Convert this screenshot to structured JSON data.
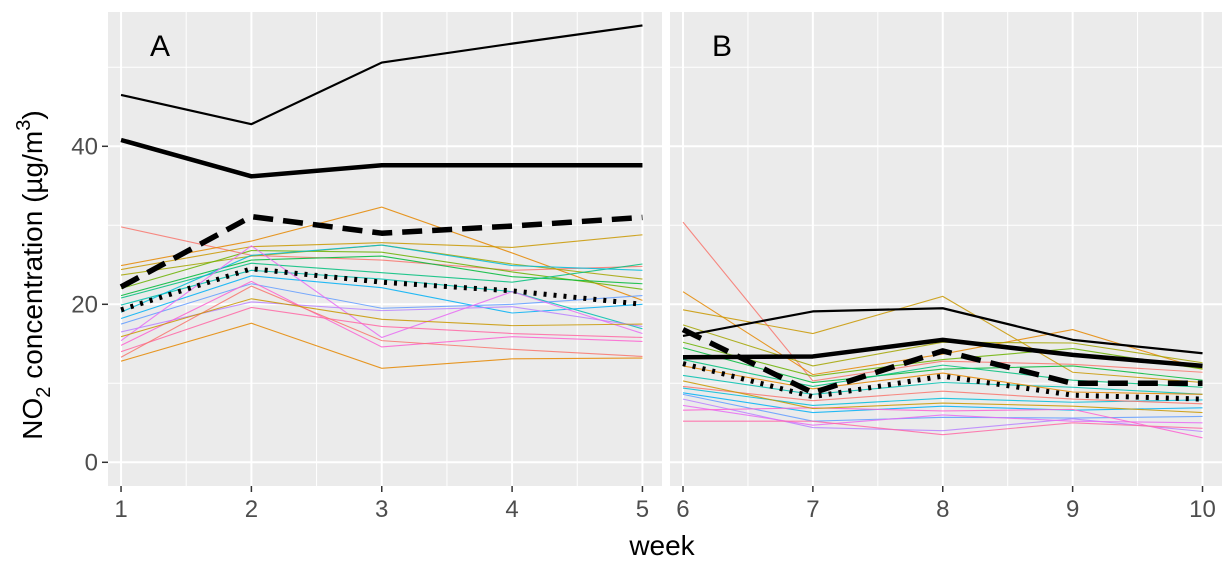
{
  "chart_data": {
    "type": "line",
    "xlabel": "week",
    "ylabel_parts": {
      "pre": "NO",
      "sub": "2",
      "mid": " concentration (µg/m",
      "sup": "3",
      "post": ")"
    },
    "ylim": [
      -3,
      57
    ],
    "y_ticks": [
      0,
      20,
      40
    ],
    "colors": {
      "panel_bg": "#ebebeb",
      "grid": "#ffffff",
      "summary": "#000000",
      "series_palette": [
        "#F8766D",
        "#E58700",
        "#C99800",
        "#A3A500",
        "#6BB100",
        "#00BA38",
        "#00BF7D",
        "#00C0AF",
        "#00BCD8",
        "#00B0F6",
        "#619CFF",
        "#B983FF",
        "#E76BF3",
        "#FD61D1",
        "#FF67A4"
      ]
    },
    "panels": [
      {
        "label": "A",
        "x_range": [
          0.9,
          5.15
        ],
        "x_ticks": [
          1,
          2,
          3,
          4,
          5
        ],
        "x": [
          1,
          2,
          3,
          4,
          5
        ],
        "summary": [
          {
            "style": "solid_thin",
            "values": [
              46.5,
              42.8,
              50.6,
              53,
              55.3
            ]
          },
          {
            "style": "solid_thick",
            "values": [
              40.8,
              36.2,
              37.6,
              37.6,
              37.6
            ]
          },
          {
            "style": "dashed",
            "values": [
              22.2,
              31.1,
              29.0,
              29.9,
              31.0
            ]
          },
          {
            "style": "dotted",
            "values": [
              19.3,
              24.5,
              22.8,
              21.7,
              20.0
            ]
          }
        ],
        "series": [
          {
            "values": [
              29.8,
              26.2,
              25.6,
              24.3,
              24.8
            ]
          },
          {
            "values": [
              24.9,
              28.0,
              32.3,
              26.5,
              20.5
            ]
          },
          {
            "values": [
              24.4,
              27.3,
              27.8,
              27.2,
              28.8
            ]
          },
          {
            "values": [
              23.7,
              26.1,
              27.5,
              25.1,
              23.2
            ]
          },
          {
            "values": [
              22.0,
              26.8,
              26.6,
              24.1,
              21.9
            ]
          },
          {
            "values": [
              21.1,
              25.6,
              26.1,
              23.5,
              22.6
            ]
          },
          {
            "values": [
              20.8,
              25.2,
              24.0,
              22.8,
              25.1
            ]
          },
          {
            "values": [
              19.9,
              24.3,
              23.2,
              21.6,
              16.9
            ]
          },
          {
            "values": [
              19.0,
              26.2,
              27.5,
              24.9,
              24.3
            ]
          },
          {
            "values": [
              18.2,
              23.6,
              22.1,
              18.9,
              20.0
            ]
          },
          {
            "values": [
              17.5,
              22.6,
              19.5,
              20.0,
              21.1
            ]
          },
          {
            "values": [
              16.5,
              20.3,
              19.2,
              19.7,
              17.2
            ]
          },
          {
            "values": [
              15.4,
              27.4,
              15.8,
              21.6,
              16.3
            ]
          },
          {
            "values": [
              14.8,
              22.9,
              14.6,
              15.9,
              15.3
            ]
          },
          {
            "values": [
              14.0,
              19.6,
              17.2,
              16.3,
              15.8
            ]
          },
          {
            "values": [
              13.3,
              22.3,
              15.4,
              14.3,
              13.4
            ]
          },
          {
            "values": [
              12.8,
              17.6,
              11.9,
              13.1,
              13.2
            ]
          },
          {
            "values": [
              15.9,
              20.7,
              18.1,
              17.3,
              17.5
            ]
          }
        ]
      },
      {
        "label": "B",
        "x_range": [
          5.9,
          10.15
        ],
        "x_ticks": [
          6,
          7,
          8,
          9,
          10
        ],
        "x": [
          6,
          7,
          8,
          9,
          10
        ],
        "summary": [
          {
            "style": "solid_thin",
            "values": [
              16.0,
              19.1,
              19.5,
              15.5,
              13.8
            ]
          },
          {
            "style": "solid_thick",
            "values": [
              13.3,
              13.4,
              15.5,
              13.6,
              12.2
            ]
          },
          {
            "style": "dashed",
            "values": [
              16.8,
              8.8,
              14.1,
              10.0,
              10.0
            ]
          },
          {
            "style": "dotted",
            "values": [
              12.5,
              8.3,
              10.9,
              8.5,
              8.0
            ]
          }
        ],
        "series": [
          {
            "values": [
              30.4,
              10.3,
              12.8,
              12.4,
              11.4
            ]
          },
          {
            "values": [
              21.6,
              11.1,
              13.7,
              16.8,
              11.8
            ]
          },
          {
            "values": [
              19.3,
              16.3,
              21.0,
              11.4,
              10.1
            ]
          },
          {
            "values": [
              17.4,
              12.2,
              15.2,
              15.1,
              12.6
            ]
          },
          {
            "values": [
              15.2,
              10.9,
              13.0,
              14.4,
              11.8
            ]
          },
          {
            "values": [
              14.5,
              10.1,
              11.8,
              12.2,
              10.4
            ]
          },
          {
            "values": [
              13.0,
              9.6,
              12.3,
              10.4,
              9.5
            ]
          },
          {
            "values": [
              11.0,
              8.6,
              10.1,
              9.5,
              8.6
            ]
          },
          {
            "values": [
              9.4,
              7.2,
              8.1,
              7.6,
              7.9
            ]
          },
          {
            "values": [
              8.8,
              6.3,
              7.1,
              6.6,
              6.9
            ]
          },
          {
            "values": [
              8.6,
              5.2,
              5.7,
              5.6,
              5.8
            ]
          },
          {
            "values": [
              8.0,
              4.4,
              4.0,
              5.5,
              3.9
            ]
          },
          {
            "values": [
              7.2,
              4.7,
              6.0,
              5.2,
              5.0
            ]
          },
          {
            "values": [
              6.6,
              6.9,
              6.5,
              6.7,
              3.1
            ]
          },
          {
            "values": [
              5.2,
              5.2,
              3.5,
              5.0,
              4.3
            ]
          },
          {
            "values": [
              9.6,
              7.8,
              9.0,
              8.0,
              7.4
            ]
          },
          {
            "values": [
              12.2,
              9.3,
              11.3,
              8.9,
              8.6
            ]
          },
          {
            "values": [
              10.3,
              6.8,
              7.5,
              7.1,
              6.3
            ]
          }
        ]
      }
    ]
  }
}
